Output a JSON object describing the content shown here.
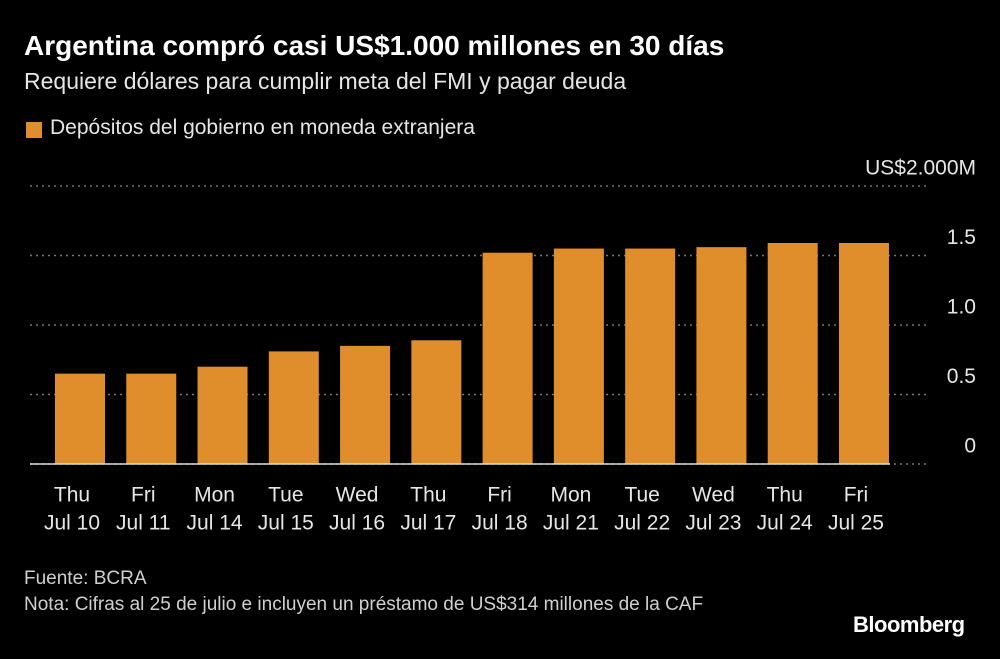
{
  "chart_data": {
    "type": "bar",
    "title": "Argentina compró casi US$1.000 millones en 30 días",
    "subtitle": "Requiere dólares para cumplir meta del FMI y pagar deuda",
    "legend_label": "Depósitos del gobierno en moneda extranjera",
    "weekdays": [
      "Thu",
      "Fri",
      "Mon",
      "Tue",
      "Wed",
      "Thu",
      "Fri",
      "Mon",
      "Tue",
      "Wed",
      "Thu",
      "Fri"
    ],
    "categories": [
      "Jul 10",
      "Jul 11",
      "Jul 14",
      "Jul 15",
      "Jul 16",
      "Jul 17",
      "Jul 18",
      "Jul 21",
      "Jul 22",
      "Jul 23",
      "Jul 24",
      "Jul 25"
    ],
    "values": [
      0.65,
      0.65,
      0.7,
      0.81,
      0.85,
      0.89,
      1.52,
      1.55,
      1.55,
      1.56,
      1.59,
      1.59
    ],
    "color": "#e08e2b",
    "ylim": [
      0,
      2
    ],
    "yticks": [
      0,
      0.5,
      {
        "value": 1,
        "label": "1.0"
      },
      1.5,
      {
        "value": 2,
        "label": "US$2.000M"
      }
    ],
    "grid": true,
    "source": "Fuente: BCRA",
    "note": "Nota: Cifras al 25 de julio e incluyen un préstamo de US$314 millones de la CAF",
    "brand": "Bloomberg"
  }
}
